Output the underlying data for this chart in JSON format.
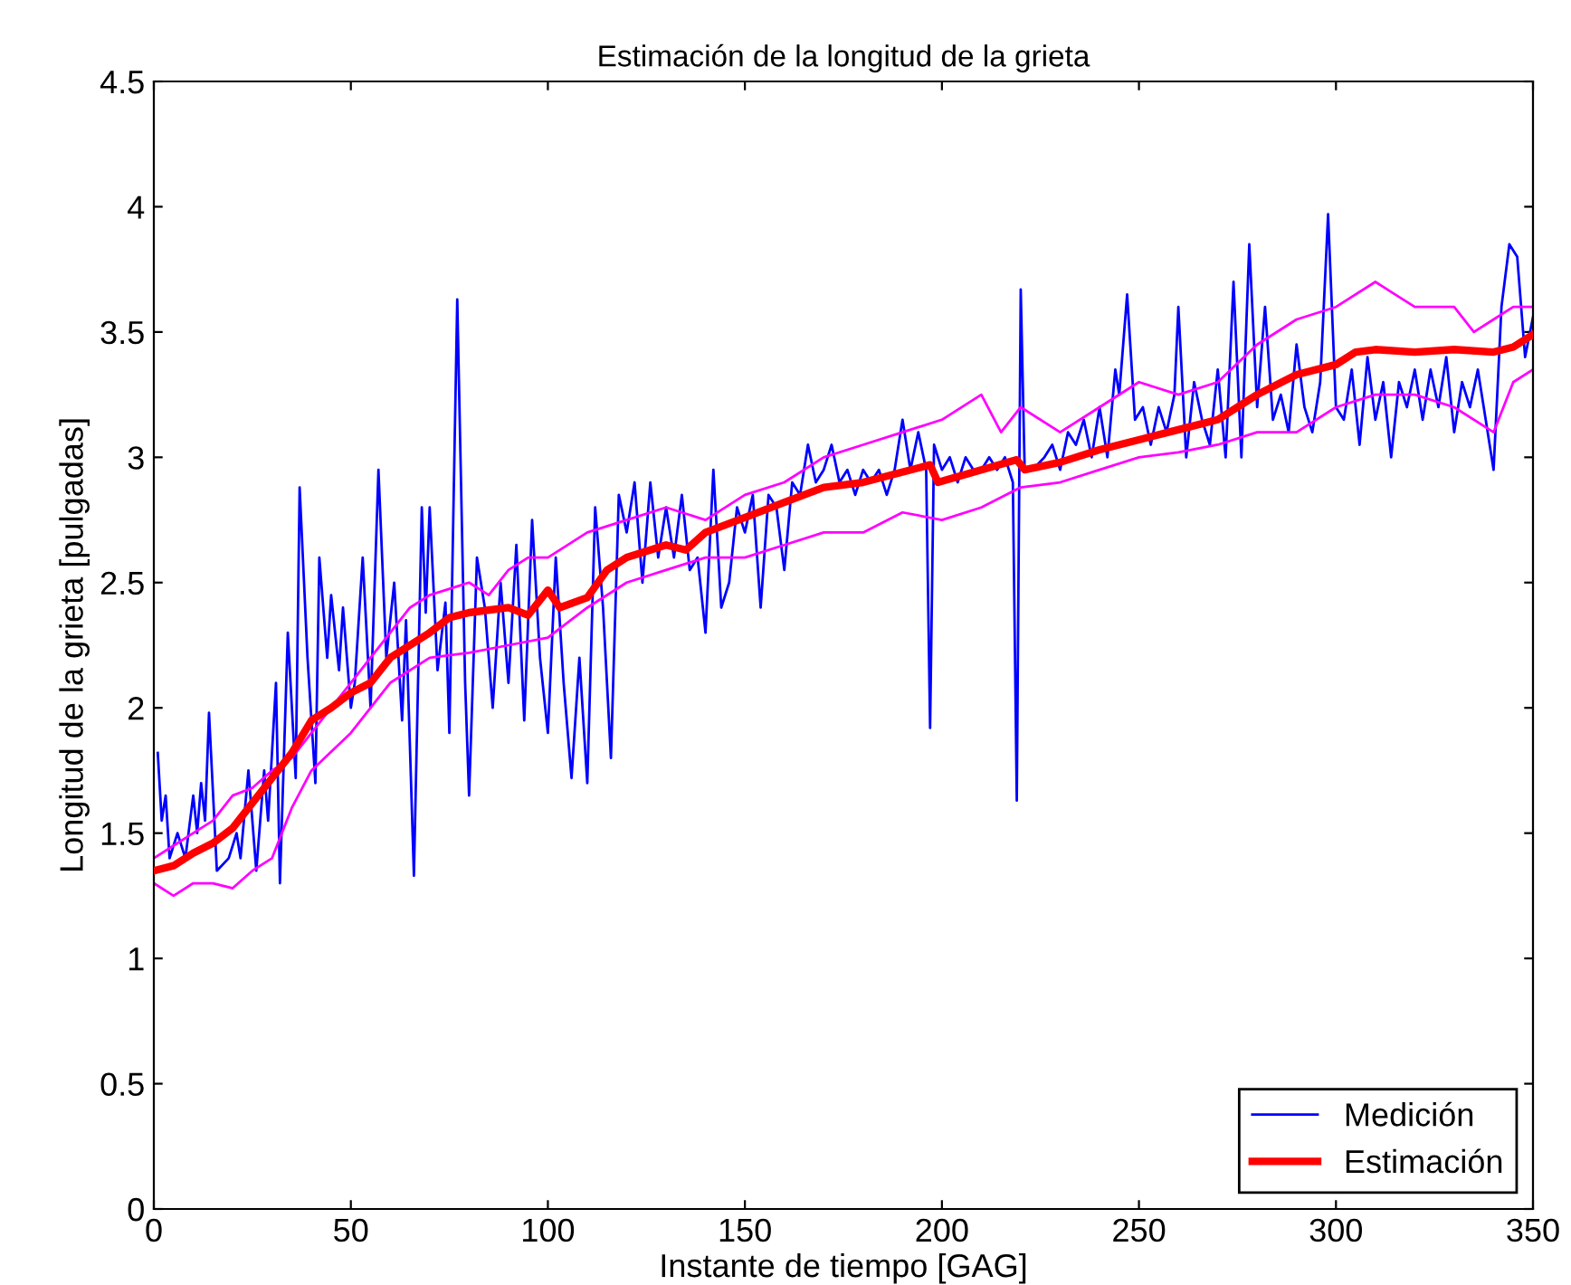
{
  "chart_data": {
    "type": "line",
    "title": "Estimación de la longitud de la grieta",
    "xlabel": "Instante de tiempo [GAG]",
    "ylabel": "Longitud de la grieta [pulgadas]",
    "xlim": [
      0,
      350
    ],
    "xticks": [
      0,
      50,
      100,
      150,
      200,
      250,
      300,
      350
    ],
    "ylim": [
      0,
      4.5
    ],
    "yticks": [
      0,
      0.5,
      1,
      1.5,
      2,
      2.5,
      3,
      3.5,
      4,
      4.5
    ],
    "grid": false,
    "legend": "bottom right",
    "marker": "none",
    "line_style": "solid",
    "series": [
      {
        "name": "Medición",
        "color": "#0000ff",
        "x": [
          1,
          2,
          3,
          4,
          6,
          8,
          10,
          11,
          12,
          13,
          14,
          16,
          19,
          21,
          22,
          24,
          26,
          28,
          29,
          31,
          32,
          34,
          36,
          37,
          39,
          41,
          42,
          44,
          45,
          47,
          48,
          50,
          51,
          53,
          55,
          57,
          59,
          61,
          63,
          64,
          66,
          68,
          69,
          70,
          72,
          74,
          75,
          77,
          79,
          80,
          82,
          84,
          86,
          88,
          90,
          92,
          94,
          96,
          98,
          100,
          102,
          104,
          106,
          108,
          110,
          112,
          114,
          116,
          118,
          120,
          122,
          124,
          126,
          128,
          130,
          132,
          134,
          136,
          138,
          140,
          142,
          144,
          146,
          148,
          150,
          152,
          154,
          156,
          158,
          160,
          162,
          164,
          166,
          168,
          170,
          172,
          174,
          176,
          178,
          180,
          182,
          184,
          186,
          188,
          190,
          192,
          194,
          196,
          197,
          198,
          200,
          202,
          204,
          206,
          208,
          210,
          212,
          214,
          216,
          218,
          219,
          220,
          221,
          223,
          226,
          228,
          230,
          232,
          234,
          236,
          238,
          240,
          242,
          244,
          245,
          247,
          249,
          251,
          253,
          255,
          257,
          259,
          260,
          262,
          264,
          266,
          268,
          270,
          272,
          274,
          276,
          278,
          280,
          282,
          284,
          286,
          288,
          290,
          292,
          294,
          296,
          298,
          300,
          302,
          304,
          306,
          308,
          310,
          312,
          314,
          316,
          318,
          320,
          322,
          324,
          326,
          328,
          330,
          332,
          334,
          336,
          338,
          340,
          342,
          344,
          346,
          348,
          350
        ],
        "values": [
          1.82,
          1.55,
          1.65,
          1.4,
          1.5,
          1.4,
          1.65,
          1.5,
          1.7,
          1.55,
          1.98,
          1.35,
          1.4,
          1.5,
          1.4,
          1.75,
          1.35,
          1.75,
          1.55,
          2.1,
          1.3,
          2.3,
          1.72,
          2.88,
          2.2,
          1.7,
          2.6,
          2.2,
          2.45,
          2.15,
          2.4,
          2.0,
          2.1,
          2.6,
          2.0,
          2.95,
          2.2,
          2.5,
          1.95,
          2.35,
          1.33,
          2.8,
          2.38,
          2.8,
          2.15,
          2.42,
          1.9,
          3.63,
          2.1,
          1.65,
          2.6,
          2.4,
          2.0,
          2.5,
          2.1,
          2.65,
          1.95,
          2.75,
          2.2,
          1.9,
          2.6,
          2.1,
          1.72,
          2.2,
          1.7,
          2.8,
          2.4,
          1.8,
          2.85,
          2.7,
          2.9,
          2.5,
          2.9,
          2.6,
          2.8,
          2.6,
          2.85,
          2.55,
          2.6,
          2.3,
          2.95,
          2.4,
          2.5,
          2.8,
          2.7,
          2.85,
          2.4,
          2.85,
          2.8,
          2.55,
          2.9,
          2.85,
          3.05,
          2.9,
          2.95,
          3.05,
          2.9,
          2.95,
          2.85,
          2.95,
          2.9,
          2.95,
          2.85,
          2.95,
          3.15,
          2.95,
          3.1,
          2.95,
          1.92,
          3.05,
          2.95,
          3.0,
          2.9,
          3.0,
          2.95,
          2.95,
          3.0,
          2.95,
          3.0,
          2.9,
          1.63,
          3.67,
          2.95,
          2.95,
          3.0,
          3.05,
          2.95,
          3.1,
          3.05,
          3.15,
          3.0,
          3.2,
          3.0,
          3.35,
          3.25,
          3.65,
          3.15,
          3.2,
          3.05,
          3.2,
          3.1,
          3.25,
          3.6,
          3.0,
          3.3,
          3.15,
          3.05,
          3.35,
          3.0,
          3.7,
          3.0,
          3.85,
          3.2,
          3.6,
          3.15,
          3.25,
          3.1,
          3.45,
          3.2,
          3.1,
          3.3,
          3.97,
          3.2,
          3.15,
          3.35,
          3.05,
          3.4,
          3.15,
          3.3,
          3.0,
          3.3,
          3.2,
          3.35,
          3.15,
          3.35,
          3.2,
          3.4,
          3.1,
          3.3,
          3.2,
          3.35,
          3.15,
          2.95,
          3.6,
          3.85,
          3.8,
          3.4,
          3.56
        ]
      },
      {
        "name": "Estimación",
        "color": "#ff0000",
        "x": [
          0,
          5,
          10,
          15,
          20,
          25,
          30,
          35,
          40,
          45,
          50,
          55,
          60,
          65,
          70,
          75,
          80,
          90,
          95,
          100,
          103,
          110,
          115,
          120,
          130,
          135,
          140,
          150,
          160,
          170,
          180,
          197,
          199,
          210,
          219,
          221,
          230,
          240,
          250,
          260,
          270,
          280,
          290,
          300,
          305,
          310,
          320,
          330,
          340,
          345,
          350
        ],
        "values": [
          1.35,
          1.37,
          1.42,
          1.46,
          1.52,
          1.62,
          1.72,
          1.82,
          1.95,
          2.0,
          2.06,
          2.1,
          2.2,
          2.25,
          2.3,
          2.36,
          2.38,
          2.4,
          2.37,
          2.47,
          2.4,
          2.44,
          2.55,
          2.6,
          2.65,
          2.63,
          2.7,
          2.76,
          2.82,
          2.88,
          2.9,
          2.97,
          2.9,
          2.95,
          2.99,
          2.95,
          2.98,
          3.03,
          3.07,
          3.11,
          3.15,
          3.25,
          3.33,
          3.37,
          3.42,
          3.43,
          3.42,
          3.43,
          3.42,
          3.44,
          3.49
        ]
      },
      {
        "color": "#ff00ff",
        "x": [
          0,
          5,
          10,
          15,
          20,
          25,
          30,
          35,
          40,
          50,
          55,
          60,
          65,
          70,
          80,
          85,
          90,
          95,
          100,
          110,
          120,
          130,
          140,
          150,
          160,
          170,
          180,
          190,
          200,
          210,
          215,
          220,
          230,
          240,
          250,
          260,
          270,
          280,
          290,
          300,
          310,
          315,
          320,
          330,
          335,
          340,
          345,
          350
        ],
        "values": [
          1.4,
          1.45,
          1.5,
          1.55,
          1.65,
          1.68,
          1.75,
          1.8,
          1.9,
          2.1,
          2.2,
          2.3,
          2.4,
          2.45,
          2.5,
          2.45,
          2.55,
          2.6,
          2.6,
          2.7,
          2.75,
          2.8,
          2.75,
          2.85,
          2.9,
          3.0,
          3.05,
          3.1,
          3.15,
          3.25,
          3.1,
          3.2,
          3.1,
          3.2,
          3.3,
          3.25,
          3.3,
          3.45,
          3.55,
          3.6,
          3.7,
          3.65,
          3.6,
          3.6,
          3.5,
          3.55,
          3.6,
          3.6
        ]
      },
      {
        "color": "#ff00ff",
        "x": [
          0,
          5,
          10,
          15,
          20,
          25,
          30,
          35,
          40,
          50,
          60,
          70,
          80,
          90,
          100,
          110,
          120,
          130,
          140,
          150,
          160,
          170,
          180,
          190,
          200,
          210,
          220,
          230,
          240,
          250,
          260,
          270,
          280,
          290,
          300,
          310,
          320,
          330,
          340,
          345,
          350
        ],
        "values": [
          1.3,
          1.25,
          1.3,
          1.3,
          1.28,
          1.35,
          1.4,
          1.6,
          1.75,
          1.9,
          2.1,
          2.2,
          2.22,
          2.25,
          2.28,
          2.4,
          2.5,
          2.55,
          2.6,
          2.6,
          2.65,
          2.7,
          2.7,
          2.78,
          2.75,
          2.8,
          2.88,
          2.9,
          2.95,
          3.0,
          3.02,
          3.05,
          3.1,
          3.1,
          3.2,
          3.25,
          3.25,
          3.2,
          3.1,
          3.3,
          3.35
        ]
      }
    ]
  }
}
